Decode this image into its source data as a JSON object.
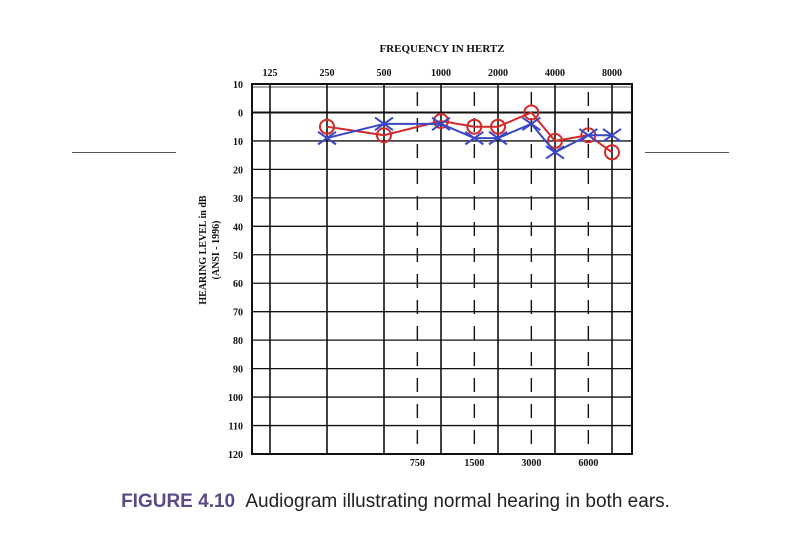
{
  "chart_data": {
    "type": "scatter",
    "title": "FREQUENCY IN HERTZ",
    "ylabel": "HEARING LEVEL in dB",
    "ylabel_sub": "(ANSI - 1996)",
    "top_ticks": [
      "125",
      "250",
      "500",
      "1000",
      "2000",
      "4000",
      "8000"
    ],
    "bottom_ticks": [
      "750",
      "1500",
      "3000",
      "6000"
    ],
    "y_ticks": [
      -10,
      0,
      10,
      20,
      30,
      40,
      50,
      60,
      70,
      80,
      90,
      100,
      110,
      120
    ],
    "ylim": [
      -10,
      120
    ],
    "y_inverted": true,
    "x_scale": "log",
    "grid": true,
    "series": [
      {
        "color": "#d42a2a",
        "marker": "circle",
        "points": [
          {
            "x": 250,
            "y": 5
          },
          {
            "x": 500,
            "y": 8
          },
          {
            "x": 1000,
            "y": 3
          },
          {
            "x": 1500,
            "y": 5
          },
          {
            "x": 2000,
            "y": 5
          },
          {
            "x": 3000,
            "y": 0
          },
          {
            "x": 4000,
            "y": 10
          },
          {
            "x": 6000,
            "y": 8
          },
          {
            "x": 8000,
            "y": 14
          }
        ]
      },
      {
        "color": "#3a48c8",
        "marker": "x",
        "points": [
          {
            "x": 250,
            "y": 9
          },
          {
            "x": 500,
            "y": 4
          },
          {
            "x": 1000,
            "y": 4
          },
          {
            "x": 1500,
            "y": 9
          },
          {
            "x": 2000,
            "y": 9
          },
          {
            "x": 3000,
            "y": 4
          },
          {
            "x": 4000,
            "y": 14
          },
          {
            "x": 6000,
            "y": 8
          },
          {
            "x": 8000,
            "y": 8
          }
        ]
      }
    ]
  },
  "caption": {
    "label": "FIGURE 4.10",
    "text": "Audiogram illustrating normal hearing in both ears."
  }
}
